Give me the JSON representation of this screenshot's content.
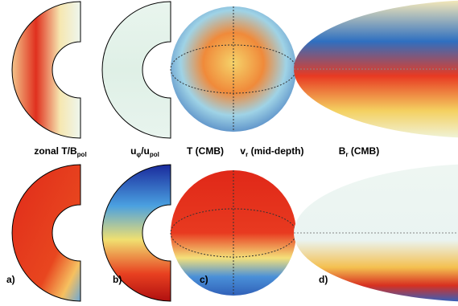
{
  "labels": [
    [
      "zonal T/B",
      "pol"
    ],
    [
      "u",
      "φ",
      "/u",
      "pol"
    ],
    [
      "T (CMB)"
    ],
    [
      "v",
      "r",
      " (mid-depth)"
    ],
    [
      "B",
      "r",
      " (CMB)"
    ]
  ],
  "panels": [
    "a)",
    "b)",
    "c)",
    "d)"
  ]
}
